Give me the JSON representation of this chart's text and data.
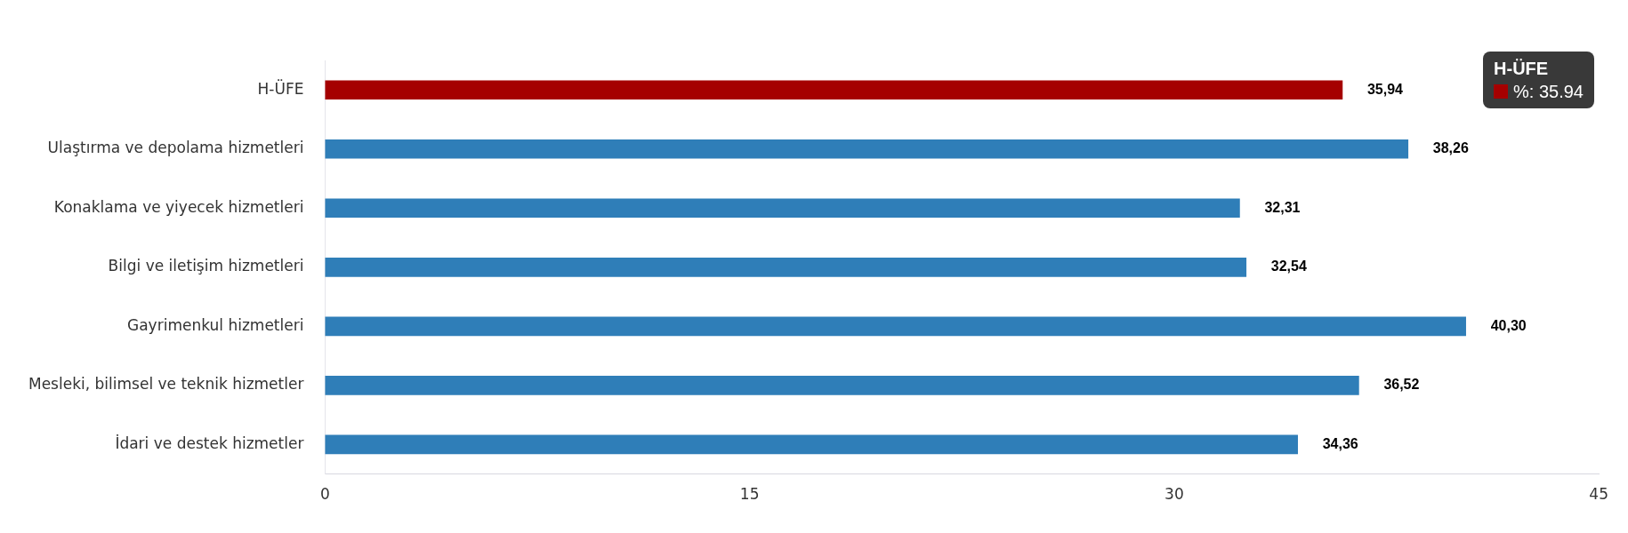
{
  "chart_data": {
    "type": "bar",
    "orientation": "horizontal",
    "categories": [
      "H-ÜFE",
      "Ulaştırma ve depolama hizmetleri",
      "Konaklama ve yiyecek hizmetleri",
      "Bilgi ve iletişim hizmetleri",
      "Gayrimenkul hizmetleri",
      "Mesleki, bilimsel ve teknik hizmetler",
      "İdari ve destek hizmetler"
    ],
    "values": [
      35.94,
      38.26,
      32.31,
      32.54,
      40.3,
      36.52,
      34.36
    ],
    "colors": [
      "#a50000",
      "#2f7eb8",
      "#2f7eb8",
      "#2f7eb8",
      "#2f7eb8",
      "#2f7eb8",
      "#2f7eb8"
    ],
    "value_labels": [
      "35,94",
      "38,26",
      "32,31",
      "32,54",
      "40,30",
      "36,52",
      "34,36"
    ],
    "xlim": [
      0,
      45
    ],
    "xticks": [
      0,
      15,
      30,
      45
    ],
    "annotations": [
      "H-ÜFE\n%: 35.94"
    ],
    "grid": false,
    "legend": false
  }
}
